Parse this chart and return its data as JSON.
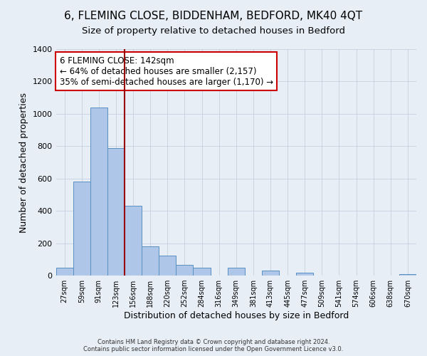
{
  "title": "6, FLEMING CLOSE, BIDDENHAM, BEDFORD, MK40 4QT",
  "subtitle": "Size of property relative to detached houses in Bedford",
  "xlabel": "Distribution of detached houses by size in Bedford",
  "ylabel": "Number of detached properties",
  "bar_labels": [
    "27sqm",
    "59sqm",
    "91sqm",
    "123sqm",
    "156sqm",
    "188sqm",
    "220sqm",
    "252sqm",
    "284sqm",
    "316sqm",
    "349sqm",
    "381sqm",
    "413sqm",
    "445sqm",
    "477sqm",
    "509sqm",
    "541sqm",
    "574sqm",
    "606sqm",
    "638sqm",
    "670sqm"
  ],
  "bar_values": [
    50,
    580,
    1040,
    790,
    430,
    180,
    125,
    65,
    50,
    0,
    50,
    0,
    30,
    0,
    20,
    0,
    0,
    0,
    0,
    0,
    10
  ],
  "bar_color": "#aec6e8",
  "bar_edge_color": "#5a8fc0",
  "ylim": [
    0,
    1400
  ],
  "yticks": [
    0,
    200,
    400,
    600,
    800,
    1000,
    1200,
    1400
  ],
  "vline_color": "#990000",
  "annotation_text": "6 FLEMING CLOSE: 142sqm\n← 64% of detached houses are smaller (2,157)\n35% of semi-detached houses are larger (1,170) →",
  "annotation_fontsize": 8.5,
  "annotation_box_color": "#ffffff",
  "annotation_border_color": "#cc0000",
  "bg_color": "#e8eef6",
  "footer_line1": "Contains HM Land Registry data © Crown copyright and database right 2024.",
  "footer_line2": "Contains public sector information licensed under the Open Government Licence v3.0.",
  "title_fontsize": 11,
  "subtitle_fontsize": 9.5,
  "xlabel_fontsize": 9,
  "ylabel_fontsize": 9
}
